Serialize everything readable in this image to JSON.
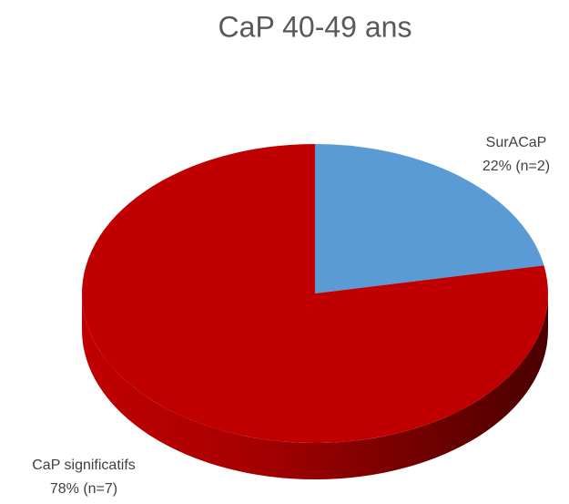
{
  "chart_data": {
    "type": "pie",
    "title": "CaP 40-49 ans",
    "categories": [
      "SurACaP",
      "CaP significatifs"
    ],
    "values": [
      22,
      78
    ],
    "value_labels": [
      "22% (n=2)",
      "78% (n=7)"
    ],
    "colors": [
      "#5b9bd5",
      "#c00000"
    ]
  }
}
